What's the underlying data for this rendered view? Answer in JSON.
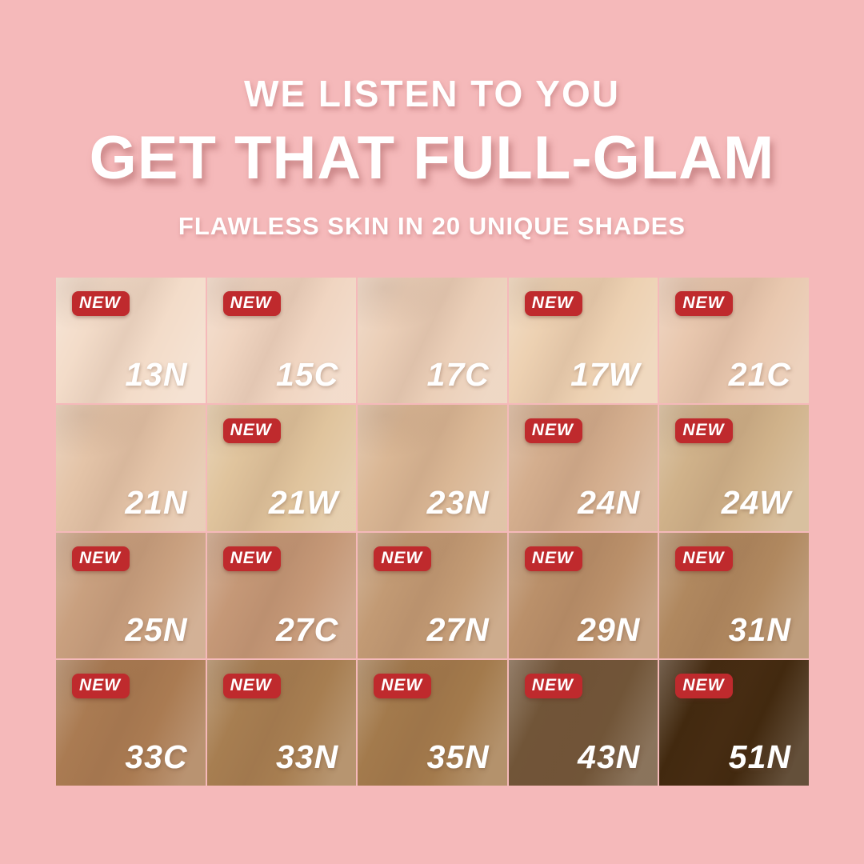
{
  "colors": {
    "background": "#f5b9ba",
    "badge_red": "#bf2a2d",
    "text_white": "#ffffff"
  },
  "header": {
    "line1": "WE LISTEN TO YOU",
    "line2": "GET THAT FULL-GLAM",
    "subtitle": "FLAWLESS SKIN IN 20 UNIQUE SHADES"
  },
  "badge_label": "NEW",
  "grid": {
    "rows": 4,
    "cols": 5,
    "cells": [
      {
        "shade": "13N",
        "color": "#f3dcc9",
        "new": true
      },
      {
        "shade": "15C",
        "color": "#f0d5c1",
        "new": true
      },
      {
        "shade": "17C",
        "color": "#ebcfb8",
        "new": false
      },
      {
        "shade": "17W",
        "color": "#edd1b2",
        "new": true
      },
      {
        "shade": "21C",
        "color": "#e9c8af",
        "new": true
      },
      {
        "shade": "21N",
        "color": "#e4c4a8",
        "new": false
      },
      {
        "shade": "21W",
        "color": "#e0c49d",
        "new": true
      },
      {
        "shade": "23N",
        "color": "#dab795",
        "new": false
      },
      {
        "shade": "24N",
        "color": "#d4ae8e",
        "new": true
      },
      {
        "shade": "24W",
        "color": "#d0b28a",
        "new": true
      },
      {
        "shade": "25N",
        "color": "#c9a07f",
        "new": true
      },
      {
        "shade": "27C",
        "color": "#c59877",
        "new": true
      },
      {
        "shade": "27N",
        "color": "#c29a74",
        "new": true
      },
      {
        "shade": "29N",
        "color": "#ba906a",
        "new": true
      },
      {
        "shade": "31N",
        "color": "#b0885f",
        "new": true
      },
      {
        "shade": "33C",
        "color": "#aa7b52",
        "new": true
      },
      {
        "shade": "33N",
        "color": "#a77e51",
        "new": true
      },
      {
        "shade": "35N",
        "color": "#a37a4c",
        "new": true
      },
      {
        "shade": "43N",
        "color": "#715538",
        "new": true
      },
      {
        "shade": "51N",
        "color": "#42290f",
        "new": true
      }
    ]
  }
}
